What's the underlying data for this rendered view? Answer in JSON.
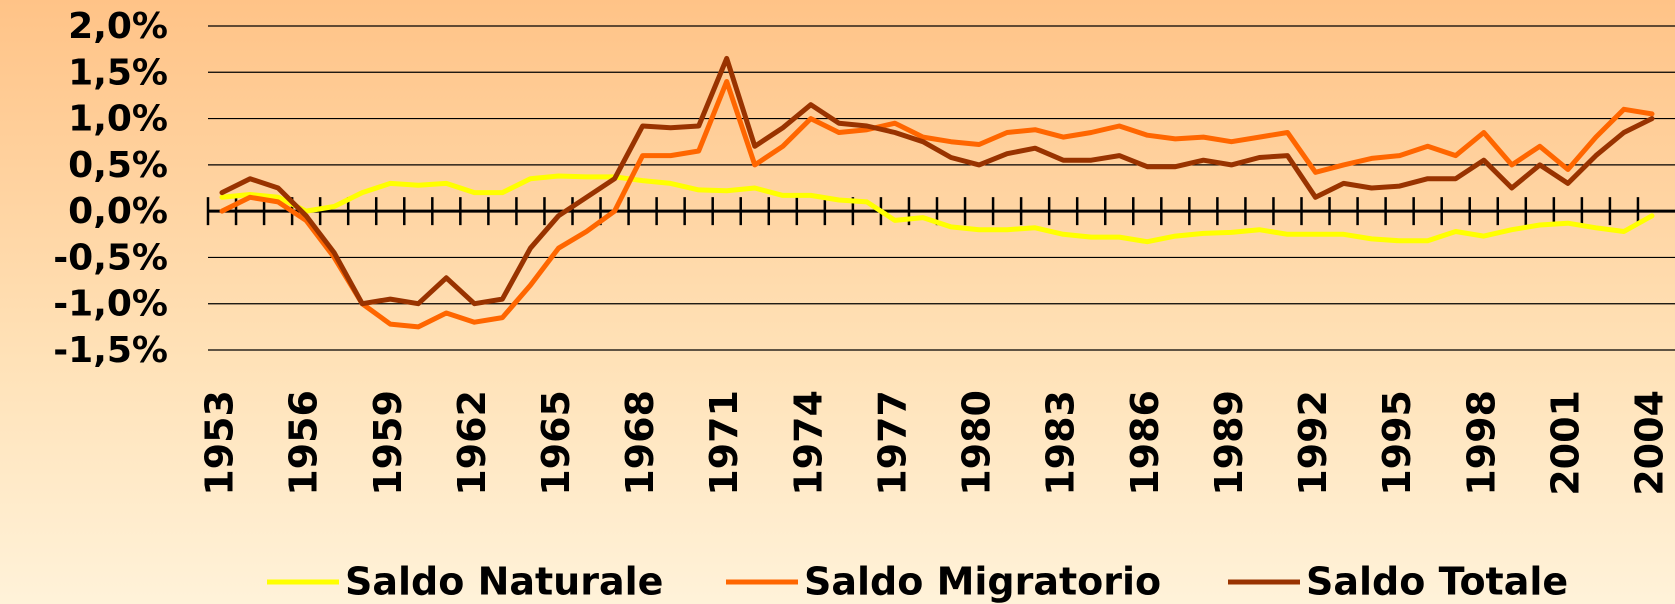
{
  "chart_data": {
    "type": "line",
    "x": [
      1953,
      1954,
      1955,
      1956,
      1957,
      1958,
      1959,
      1960,
      1961,
      1962,
      1963,
      1964,
      1965,
      1966,
      1967,
      1968,
      1969,
      1970,
      1971,
      1972,
      1973,
      1974,
      1975,
      1976,
      1977,
      1978,
      1979,
      1980,
      1981,
      1982,
      1983,
      1984,
      1985,
      1986,
      1987,
      1988,
      1989,
      1990,
      1991,
      1992,
      1993,
      1994,
      1995,
      1996,
      1997,
      1998,
      1999,
      2000,
      2001,
      2002,
      2003,
      2004
    ],
    "xlim": [
      1952.5,
      2004.5
    ],
    "xticks": [
      1953,
      1956,
      1959,
      1962,
      1965,
      1968,
      1971,
      1974,
      1977,
      1980,
      1983,
      1986,
      1989,
      1992,
      1995,
      1998,
      2001,
      2004
    ],
    "ylim": [
      -1.5,
      2.0
    ],
    "yticks": [
      {
        "value": -1.5,
        "label": "-1,5%"
      },
      {
        "value": -1.0,
        "label": "-1,0%"
      },
      {
        "value": -0.5,
        "label": "-0,5%"
      },
      {
        "value": 0,
        "label": "0,0%"
      },
      {
        "value": 0.5,
        "label": "0,5%"
      },
      {
        "value": 1.0,
        "label": "1,0%"
      },
      {
        "value": 1.5,
        "label": "1,5%"
      },
      {
        "value": 2.0,
        "label": "2,0%"
      }
    ],
    "grid": true,
    "series": [
      {
        "name": "Saldo Naturale",
        "color": "#ffff00",
        "values": [
          0.15,
          0.18,
          0.15,
          0.0,
          0.05,
          0.2,
          0.3,
          0.28,
          0.3,
          0.2,
          0.2,
          0.35,
          0.38,
          0.37,
          0.37,
          0.33,
          0.3,
          0.23,
          0.22,
          0.25,
          0.17,
          0.17,
          0.12,
          0.1,
          -0.1,
          -0.07,
          -0.17,
          -0.2,
          -0.2,
          -0.18,
          -0.25,
          -0.28,
          -0.28,
          -0.33,
          -0.27,
          -0.24,
          -0.23,
          -0.2,
          -0.25,
          -0.25,
          -0.25,
          -0.3,
          -0.32,
          -0.32,
          -0.22,
          -0.27,
          -0.2,
          -0.15,
          -0.13,
          -0.18,
          -0.22,
          -0.05
        ]
      },
      {
        "name": "Saldo Migratorio",
        "color": "#ff6600",
        "values": [
          0.0,
          0.15,
          0.1,
          -0.1,
          -0.5,
          -1.0,
          -1.22,
          -1.25,
          -1.1,
          -1.2,
          -1.15,
          -0.8,
          -0.4,
          -0.22,
          0.0,
          0.6,
          0.6,
          0.65,
          1.4,
          0.5,
          0.7,
          1.0,
          0.85,
          0.88,
          0.95,
          0.8,
          0.75,
          0.72,
          0.85,
          0.88,
          0.8,
          0.85,
          0.92,
          0.82,
          0.78,
          0.8,
          0.75,
          0.8,
          0.85,
          0.42,
          0.5,
          0.57,
          0.6,
          0.7,
          0.6,
          0.85,
          0.5,
          0.7,
          0.45,
          0.8,
          1.1,
          1.05
        ]
      },
      {
        "name": "Saldo Totale",
        "color": "#993300",
        "values": [
          0.2,
          0.35,
          0.25,
          -0.05,
          -0.45,
          -1.0,
          -0.95,
          -1.0,
          -0.72,
          -1.0,
          -0.95,
          -0.4,
          -0.05,
          0.15,
          0.35,
          0.92,
          0.9,
          0.92,
          1.65,
          0.7,
          0.9,
          1.15,
          0.95,
          0.92,
          0.85,
          0.75,
          0.58,
          0.5,
          0.62,
          0.68,
          0.55,
          0.55,
          0.6,
          0.48,
          0.48,
          0.55,
          0.5,
          0.58,
          0.6,
          0.15,
          0.3,
          0.25,
          0.27,
          0.35,
          0.35,
          0.55,
          0.25,
          0.5,
          0.3,
          0.6,
          0.85,
          1.0
        ]
      }
    ],
    "legend": "bottom"
  }
}
